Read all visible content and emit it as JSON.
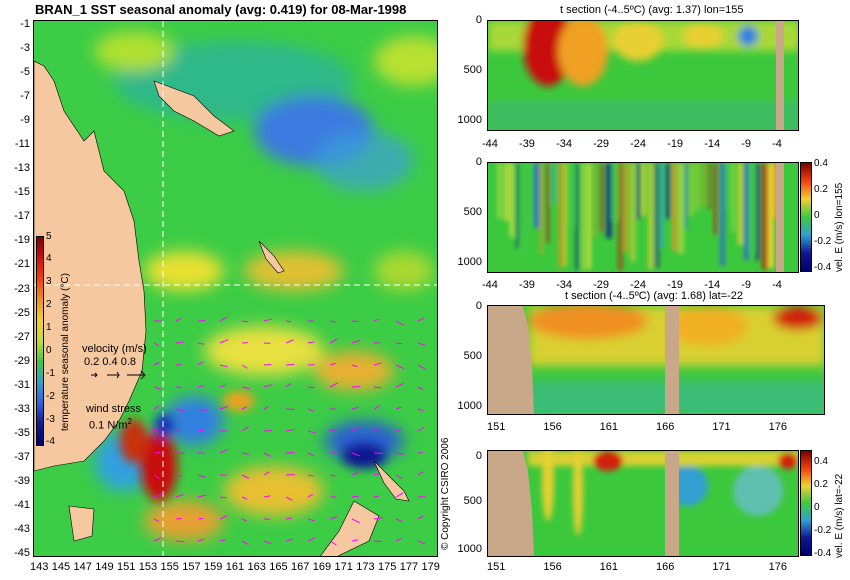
{
  "chart_data": [
    {
      "type": "heatmap",
      "title": "BRAN_1 SST seasonal anomaly (avg: 0.419) for 08-Mar-1998",
      "xlabel": "",
      "ylabel": "",
      "x_ticks": [
        "143",
        "145",
        "147",
        "149",
        "151",
        "153",
        "155",
        "157",
        "159",
        "161",
        "163",
        "165",
        "167",
        "169",
        "171",
        "173",
        "175",
        "177",
        "179"
      ],
      "y_ticks": [
        "-1",
        "-3",
        "-5",
        "-7",
        "-9",
        "-11",
        "-13",
        "-15",
        "-17",
        "-19",
        "-21",
        "-23",
        "-25",
        "-27",
        "-29",
        "-31",
        "-33",
        "-35",
        "-37",
        "-39",
        "-41",
        "-43",
        "-45"
      ],
      "xlim": [
        143,
        180
      ],
      "ylim": [
        -45,
        0
      ],
      "colorbar": {
        "label": "temperature seasonal anomaly (°C)",
        "ticks": [
          "5",
          "4",
          "3",
          "2",
          "1",
          "0",
          "-1",
          "-2",
          "-3",
          "-4"
        ],
        "range": [
          -4,
          5
        ]
      },
      "velocity_legend": {
        "title": "velocity (m/s)",
        "values": "0.2 0.4 0.8"
      },
      "wind_legend": {
        "title": "wind stress",
        "value": "0.1 N/m",
        "sup": "2"
      },
      "copyright": "© Copyright CSIRO 2006",
      "section_lines": {
        "lon": 155,
        "lat": -22
      },
      "colors": {
        "land": "#f5c8a0",
        "vectors": "#ff00ff",
        "guide_line": "#ffffff"
      }
    },
    {
      "type": "heatmap",
      "title": "t section (-4..5ºC) (avg: 1.37) lon=155",
      "x_ticks": [
        "-44",
        "-39",
        "-34",
        "-29",
        "-24",
        "-19",
        "-14",
        "-9",
        "-4"
      ],
      "y_ticks": [
        "0",
        "500",
        "1000"
      ],
      "xlim": [
        -45,
        0
      ],
      "ylim": [
        1050,
        0
      ]
    },
    {
      "type": "heatmap",
      "title": "",
      "x_ticks": [
        "-44",
        "-39",
        "-34",
        "-29",
        "-24",
        "-19",
        "-14",
        "-9",
        "-4"
      ],
      "y_ticks": [
        "0",
        "500",
        "1000"
      ],
      "xlim": [
        -45,
        0
      ],
      "ylim": [
        1050,
        0
      ],
      "colorbar": {
        "label": "vel. E (m/s) lon=155",
        "ticks": [
          "0.4",
          "0.2",
          "0",
          "-0.2",
          "-0.4"
        ],
        "range": [
          -0.4,
          0.4
        ]
      }
    },
    {
      "type": "heatmap",
      "title": "t section (-4..5ºC) (avg: 1.68) lat=-22",
      "x_ticks": [
        "151",
        "156",
        "161",
        "166",
        "171",
        "176"
      ],
      "y_ticks": [
        "0",
        "500",
        "1000"
      ],
      "xlim": [
        150,
        180
      ],
      "ylim": [
        1050,
        0
      ]
    },
    {
      "type": "heatmap",
      "title": "",
      "x_ticks": [
        "151",
        "156",
        "161",
        "166",
        "171",
        "176"
      ],
      "y_ticks": [
        "0",
        "500",
        "1000"
      ],
      "xlim": [
        150,
        180
      ],
      "ylim": [
        1050,
        0
      ],
      "colorbar": {
        "label": "vel. E (m/s) lat=-22",
        "ticks": [
          "0.4",
          "0.2",
          "0",
          "-0.2",
          "-0.4"
        ],
        "range": [
          -0.4,
          0.4
        ]
      }
    }
  ]
}
